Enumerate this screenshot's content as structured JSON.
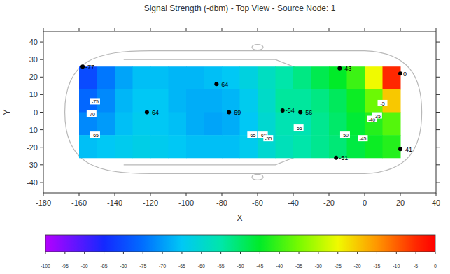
{
  "chart_data": {
    "type": "heatmap",
    "title": "Signal Strength (-dbm) - Top View - Source Node: 1",
    "x_label": "X",
    "y_label": "Y",
    "xlim": [
      -180,
      40
    ],
    "ylim": [
      -46,
      46
    ],
    "xticks": [
      -180,
      -160,
      -140,
      -120,
      -100,
      -80,
      -60,
      -40,
      -20,
      0,
      20,
      40
    ],
    "yticks": [
      -40,
      -30,
      -20,
      -10,
      0,
      10,
      20,
      30,
      40
    ],
    "cells": {
      "x_edges": [
        -160,
        -150,
        -140,
        -130,
        -120,
        -110,
        -100,
        -90,
        -80,
        -70,
        -60,
        -50,
        -40,
        -30,
        -20,
        -10,
        0,
        10,
        20
      ],
      "y_edges": [
        26,
        13,
        0,
        -13,
        -26
      ],
      "values": [
        [
          -80,
          -74,
          -69,
          -66,
          -66,
          -67,
          -67,
          -66,
          -65,
          -62,
          -58,
          -55,
          -52,
          -48,
          -45,
          -40,
          -25,
          -5
        ],
        [
          -76,
          -72,
          -67,
          -65,
          -65,
          -67,
          -68,
          -68,
          -67,
          -64,
          -59,
          -54,
          -54,
          -52,
          -49,
          -44,
          -36,
          -20
        ],
        [
          -72,
          -70,
          -66,
          -64,
          -65,
          -66,
          -68,
          -69,
          -68,
          -65,
          -60,
          -56,
          -56,
          -53,
          -50,
          -46,
          -42,
          -38
        ],
        [
          -66,
          -65,
          -64,
          -63,
          -64,
          -65,
          -66,
          -66,
          -66,
          -64,
          -60,
          -57,
          -55,
          -53,
          -51,
          -47,
          -44,
          -42
        ]
      ]
    },
    "points": [
      {
        "x": -158,
        "y": 26,
        "value": -77
      },
      {
        "x": -83,
        "y": 16,
        "value": -64
      },
      {
        "x": -122,
        "y": 0,
        "value": -64
      },
      {
        "x": -76,
        "y": 0,
        "value": -69
      },
      {
        "x": -46,
        "y": 1,
        "value": -54
      },
      {
        "x": -36,
        "y": 0,
        "value": -56
      },
      {
        "x": -14,
        "y": 25,
        "value": -43
      },
      {
        "x": 20,
        "y": 22,
        "value": 0
      },
      {
        "x": 20,
        "y": -21,
        "value": -41
      },
      {
        "x": -16,
        "y": -26,
        "value": -51
      }
    ],
    "contour_labels": [
      {
        "x": -151,
        "y": 6,
        "value": -75
      },
      {
        "x": -153,
        "y": -1,
        "value": -70
      },
      {
        "x": -151,
        "y": -13,
        "value": -65
      },
      {
        "x": -63,
        "y": -13,
        "value": -65
      },
      {
        "x": -57,
        "y": -13,
        "value": -60
      },
      {
        "x": -54,
        "y": -15,
        "value": -55
      },
      {
        "x": -37,
        "y": -9,
        "value": -55
      },
      {
        "x": -11,
        "y": -13,
        "value": -50
      },
      {
        "x": -1,
        "y": -15,
        "value": -45
      },
      {
        "x": 4,
        "y": -4,
        "value": -40
      },
      {
        "x": 7,
        "y": -2,
        "value": -35
      },
      {
        "x": 10,
        "y": 5,
        "value": -5
      }
    ],
    "colorbar": {
      "range": [
        -100,
        0
      ],
      "ticks": [
        -100,
        -95,
        -90,
        -85,
        -80,
        -75,
        -70,
        -65,
        -60,
        -55,
        -50,
        -45,
        -40,
        -35,
        -30,
        -25,
        -20,
        -15,
        -10,
        -5,
        0
      ]
    }
  }
}
